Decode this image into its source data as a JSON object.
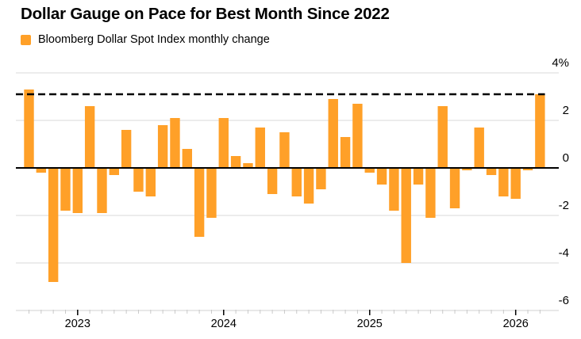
{
  "page": {
    "background": "#ffffff"
  },
  "header": {
    "title": "Dollar Gauge on Pace for Best Month Since 2022",
    "legend": {
      "label": "Bloomberg Dollar Spot Index monthly change",
      "swatch_color": "#FFA028"
    }
  },
  "chart_data": {
    "type": "bar",
    "title": "Dollar Gauge on Pace for Best Month Since 2022",
    "series_name": "Bloomberg Dollar Spot Index monthly change",
    "unit": "%",
    "bar_color": "#FFA028",
    "x": [
      "Sep 2022",
      "Oct 2022",
      "Nov 2022",
      "Dec 2022",
      "Jan 2023",
      "Feb 2023",
      "Mar 2023",
      "Apr 2023",
      "May 2023",
      "Jun 2023",
      "Jul 2023",
      "Aug 2023",
      "Sep 2023",
      "Oct 2023",
      "Nov 2023",
      "Dec 2023",
      "Jan 2024",
      "Feb 2024",
      "Mar 2024",
      "Apr 2024",
      "May 2024",
      "Jun 2024",
      "Jul 2024",
      "Aug 2024",
      "Sep 2024",
      "Oct 2024",
      "Nov 2024",
      "Dec 2024",
      "Jan 2025",
      "Feb 2025",
      "Mar 2025",
      "Apr 2025",
      "May 2025",
      "Jun 2025",
      "Jul 2025",
      "Aug 2025",
      "Sep 2025",
      "Oct 2025",
      "Nov 2025",
      "Dec 2025",
      "Jan 2026",
      "Feb 2026",
      "Mar 2026"
    ],
    "values": [
      3.3,
      -0.2,
      -4.8,
      -1.8,
      -1.9,
      2.6,
      -1.9,
      -0.3,
      1.6,
      -1.0,
      -1.2,
      1.8,
      2.1,
      0.8,
      -2.9,
      -2.1,
      2.1,
      0.5,
      0.2,
      1.7,
      -1.1,
      1.5,
      -1.2,
      -1.5,
      -0.9,
      2.9,
      1.3,
      2.7,
      -0.2,
      -0.7,
      -1.8,
      -4.0,
      -0.7,
      -2.1,
      2.6,
      -1.7,
      -0.1,
      1.7,
      -0.3,
      -1.2,
      -1.3,
      -0.1,
      3.1
    ],
    "ylim": [
      -6,
      4
    ],
    "yticks": [
      4,
      2,
      0,
      -2,
      -4,
      -6
    ],
    "ytick_labels": [
      "4%",
      "2",
      "0",
      "-2",
      "-4",
      "-6"
    ],
    "y_axis_position": "right",
    "x_year_labels": [
      "2023",
      "2024",
      "2025",
      "2026"
    ],
    "x_year_tick_indices": [
      4,
      16,
      28,
      40
    ],
    "reference_line": {
      "value": 3.1,
      "style": "dashed",
      "color": "#000000"
    },
    "grid": "horizontal-light",
    "colors": {
      "gridline": "#d9d9d9",
      "zero_line": "#000000",
      "axis_line": "#d2d2d2",
      "minor_tick": "#c9c9c9",
      "major_tick": "#000000",
      "label": "#000000"
    }
  }
}
